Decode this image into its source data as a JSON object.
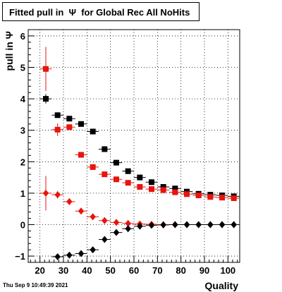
{
  "page": {
    "title": "Fitted pull in  Ψ  for Global Rec All NoHits",
    "timestamp": "Thu Sep  9 10:49:39 2021"
  },
  "chart_data": {
    "type": "scatter",
    "title": "Fitted pull in  Ψ  for Global Rec All NoHits",
    "xlabel": "Quality",
    "ylabel": "pull in  Ψ",
    "xlim": [
      15,
      105
    ],
    "ylim": [
      -1.2,
      6.2
    ],
    "x_ticks": [
      20,
      30,
      40,
      50,
      60,
      70,
      80,
      90,
      100
    ],
    "y_ticks": [
      -1,
      0,
      1,
      2,
      3,
      4,
      5,
      6
    ],
    "grid": true,
    "x_error": 2.5,
    "colors": {
      "black": "#000000",
      "red": "#e8140d"
    },
    "series": [
      {
        "marker": "square",
        "color": "#000000",
        "points": [
          {
            "x": 22.5,
            "y": 4.0,
            "yerr": 0.15
          },
          {
            "x": 27.5,
            "y": 3.48,
            "yerr": 0.05
          },
          {
            "x": 32.5,
            "y": 3.37,
            "yerr": 0.04
          },
          {
            "x": 37.5,
            "y": 3.2,
            "yerr": 0.04
          },
          {
            "x": 42.5,
            "y": 2.96,
            "yerr": 0.04
          },
          {
            "x": 47.5,
            "y": 2.4,
            "yerr": 0.03
          },
          {
            "x": 52.5,
            "y": 1.97,
            "yerr": 0.03
          },
          {
            "x": 57.5,
            "y": 1.7,
            "yerr": 0.03
          },
          {
            "x": 62.5,
            "y": 1.5,
            "yerr": 0.02
          },
          {
            "x": 67.5,
            "y": 1.35,
            "yerr": 0.02
          },
          {
            "x": 72.5,
            "y": 1.2,
            "yerr": 0.02
          },
          {
            "x": 77.5,
            "y": 1.15,
            "yerr": 0.02
          },
          {
            "x": 82.5,
            "y": 1.05,
            "yerr": 0.02
          },
          {
            "x": 87.5,
            "y": 0.98,
            "yerr": 0.02
          },
          {
            "x": 92.5,
            "y": 0.95,
            "yerr": 0.02
          },
          {
            "x": 97.5,
            "y": 0.93,
            "yerr": 0.02
          },
          {
            "x": 102.5,
            "y": 0.9,
            "yerr": 0.02
          }
        ]
      },
      {
        "marker": "square",
        "color": "#e8140d",
        "points": [
          {
            "x": 22.5,
            "y": 4.95,
            "yerr": 0.7
          },
          {
            "x": 27.5,
            "y": 3.02,
            "yerr": 0.2
          },
          {
            "x": 32.5,
            "y": 3.1,
            "yerr": 0.05
          },
          {
            "x": 37.5,
            "y": 2.22,
            "yerr": 0.05
          },
          {
            "x": 42.5,
            "y": 1.83,
            "yerr": 0.04
          },
          {
            "x": 47.5,
            "y": 1.6,
            "yerr": 0.04
          },
          {
            "x": 52.5,
            "y": 1.44,
            "yerr": 0.03
          },
          {
            "x": 57.5,
            "y": 1.33,
            "yerr": 0.03
          },
          {
            "x": 62.5,
            "y": 1.2,
            "yerr": 0.03
          },
          {
            "x": 67.5,
            "y": 1.13,
            "yerr": 0.02
          },
          {
            "x": 72.5,
            "y": 1.1,
            "yerr": 0.02
          },
          {
            "x": 77.5,
            "y": 1.03,
            "yerr": 0.02
          },
          {
            "x": 82.5,
            "y": 0.97,
            "yerr": 0.02
          },
          {
            "x": 87.5,
            "y": 0.93,
            "yerr": 0.02
          },
          {
            "x": 92.5,
            "y": 0.88,
            "yerr": 0.02
          },
          {
            "x": 97.5,
            "y": 0.86,
            "yerr": 0.02
          },
          {
            "x": 102.5,
            "y": 0.84,
            "yerr": 0.02
          }
        ]
      },
      {
        "marker": "diamond",
        "color": "#e8140d",
        "points": [
          {
            "x": 22.5,
            "y": 1.0,
            "yerr": 0.55
          },
          {
            "x": 27.5,
            "y": 0.95,
            "yerr": 0.12
          },
          {
            "x": 32.5,
            "y": 0.73,
            "yerr": 0.05
          },
          {
            "x": 37.5,
            "y": 0.43,
            "yerr": 0.04
          },
          {
            "x": 42.5,
            "y": 0.25,
            "yerr": 0.03
          },
          {
            "x": 47.5,
            "y": 0.13,
            "yerr": 0.03
          },
          {
            "x": 52.5,
            "y": 0.07,
            "yerr": 0.02
          },
          {
            "x": 57.5,
            "y": 0.04,
            "yerr": 0.02
          },
          {
            "x": 62.5,
            "y": 0.02,
            "yerr": 0.02
          },
          {
            "x": 67.5,
            "y": 0.01,
            "yerr": 0.02
          },
          {
            "x": 72.5,
            "y": 0.0,
            "yerr": 0.02
          },
          {
            "x": 77.5,
            "y": 0.0,
            "yerr": 0.02
          },
          {
            "x": 82.5,
            "y": 0.0,
            "yerr": 0.02
          },
          {
            "x": 87.5,
            "y": 0.0,
            "yerr": 0.02
          },
          {
            "x": 92.5,
            "y": 0.0,
            "yerr": 0.02
          },
          {
            "x": 97.5,
            "y": 0.0,
            "yerr": 0.02
          },
          {
            "x": 102.5,
            "y": 0.0,
            "yerr": 0.02
          }
        ]
      },
      {
        "marker": "diamond",
        "color": "#000000",
        "points": [
          {
            "x": 27.5,
            "y": -1.02,
            "yerr": 0.05
          },
          {
            "x": 32.5,
            "y": -0.97,
            "yerr": 0.04
          },
          {
            "x": 37.5,
            "y": -0.92,
            "yerr": 0.04
          },
          {
            "x": 42.5,
            "y": -0.8,
            "yerr": 0.03
          },
          {
            "x": 47.5,
            "y": -0.47,
            "yerr": 0.03
          },
          {
            "x": 52.5,
            "y": -0.25,
            "yerr": 0.02
          },
          {
            "x": 57.5,
            "y": -0.13,
            "yerr": 0.02
          },
          {
            "x": 62.5,
            "y": -0.05,
            "yerr": 0.02
          },
          {
            "x": 67.5,
            "y": -0.02,
            "yerr": 0.02
          },
          {
            "x": 72.5,
            "y": -0.01,
            "yerr": 0.02
          },
          {
            "x": 77.5,
            "y": 0.0,
            "yerr": 0.02
          },
          {
            "x": 82.5,
            "y": 0.0,
            "yerr": 0.02
          },
          {
            "x": 87.5,
            "y": 0.0,
            "yerr": 0.02
          },
          {
            "x": 92.5,
            "y": 0.0,
            "yerr": 0.02
          },
          {
            "x": 97.5,
            "y": 0.0,
            "yerr": 0.02
          },
          {
            "x": 102.5,
            "y": 0.0,
            "yerr": 0.02
          }
        ]
      }
    ]
  }
}
